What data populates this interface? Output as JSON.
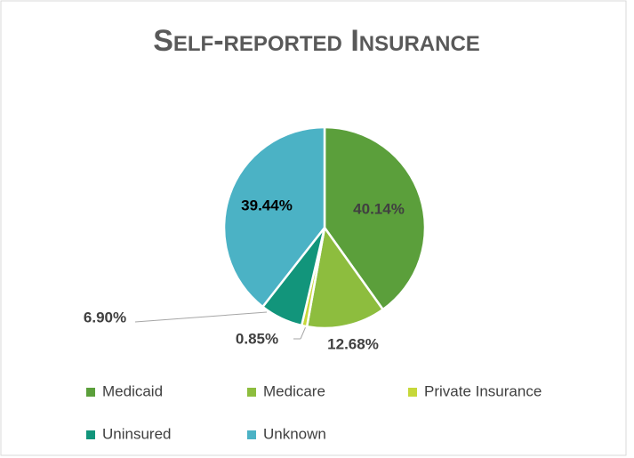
{
  "chart_data": {
    "type": "pie",
    "title": "Self-reported Insurance",
    "categories": [
      "Medicaid",
      "Medicare",
      "Private Insurance",
      "Uninsured",
      "Unknown"
    ],
    "values": [
      40.14,
      12.68,
      0.85,
      6.9,
      39.44
    ],
    "value_labels": [
      "40.14%",
      "12.68%",
      "0.85%",
      "6.90%",
      "39.44%"
    ],
    "colors": [
      "#5b9f3b",
      "#8dbd3e",
      "#c6d83a",
      "#12957b",
      "#4bb2c5"
    ],
    "legend": "bottom"
  }
}
